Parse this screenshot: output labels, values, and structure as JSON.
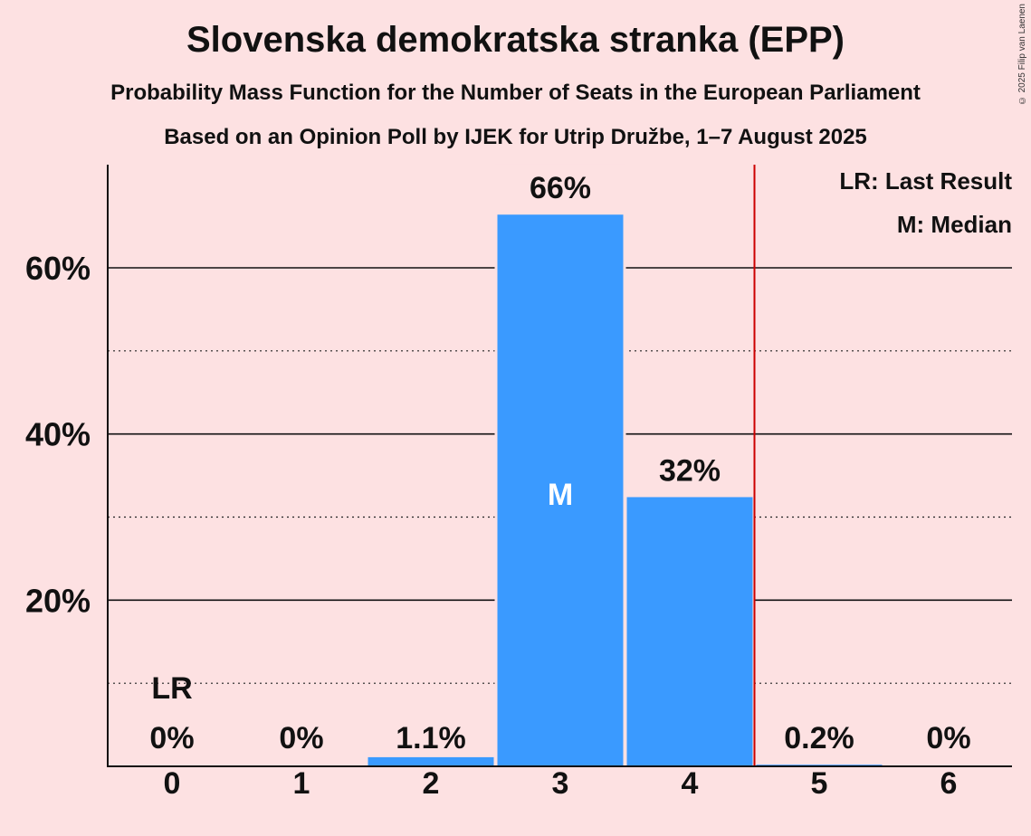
{
  "title": "Slovenska demokratska stranka (EPP)",
  "subtitle1": "Probability Mass Function for the Number of Seats in the European Parliament",
  "subtitle2": "Based on an Opinion Poll by IJEK for Utrip Družbe, 1–7 August 2025",
  "copyright": "© 2025 Filip van Laenen",
  "legend": {
    "last_result": "LR: Last Result",
    "median": "M: Median"
  },
  "colors": {
    "background": "#FDE1E2",
    "bar": "#3A9AFF",
    "last_result_line": "#CC0000"
  },
  "chart_data": {
    "type": "bar",
    "categories": [
      "0",
      "1",
      "2",
      "3",
      "4",
      "5",
      "6"
    ],
    "values": [
      0,
      0,
      1.1,
      66.4,
      32.4,
      0.2,
      0
    ],
    "value_labels": [
      "0%",
      "0%",
      "1.1%",
      "66%",
      "32%",
      "0.2%",
      "0%"
    ],
    "ylim": [
      0,
      72
    ],
    "yticks": [
      20,
      40,
      60
    ],
    "ytick_labels": [
      "20%",
      "40%",
      "60%"
    ],
    "minor_gridlines": [
      10,
      30,
      50
    ],
    "last_result_seat": "0",
    "last_result_label": "LR",
    "median_seat": "3",
    "median_label": "M",
    "majority_line_after": "4",
    "legend_position": "top-right"
  }
}
